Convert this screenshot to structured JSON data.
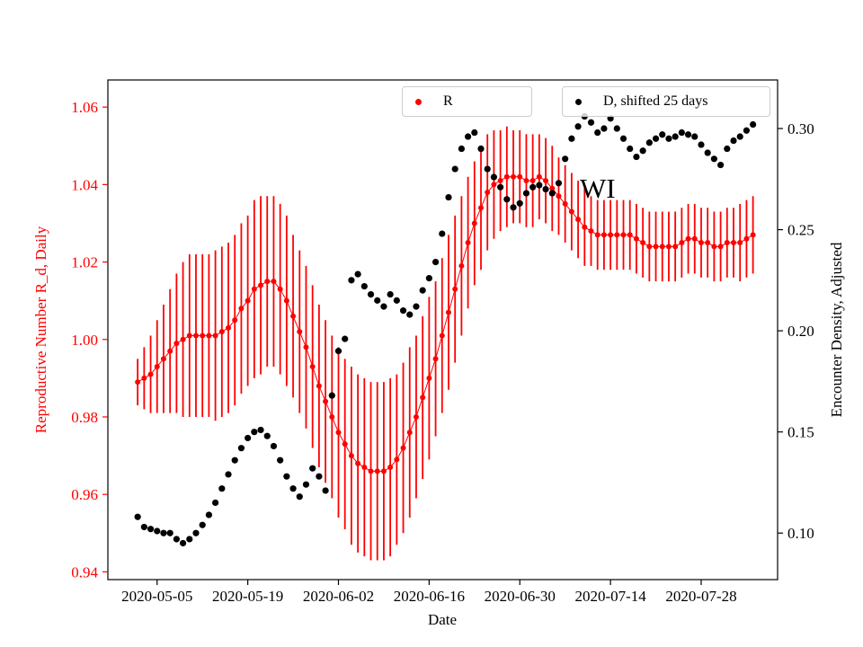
{
  "figure": {
    "background": "#ffffff",
    "annotation": "WI",
    "xlabel": "Date",
    "ylabel_left": "Reproductive Number R_d, Daily",
    "ylabel_right": "Encounter Density, Adjusted",
    "axis_color_left": "#ff0000",
    "axis_color_right": "#000000",
    "legend": [
      {
        "label": "R",
        "color": "#ff0000"
      },
      {
        "label": "D, shifted 25 days",
        "color": "#000000"
      }
    ]
  },
  "chart_data": {
    "type": "scatter",
    "title": "",
    "xlabel": "Date",
    "ylabel_left": "Reproductive Number R_d, Daily",
    "ylabel_right": "Encounter Density, Adjusted",
    "grid": false,
    "legend_position": "upper center",
    "x": [
      "2020-05-02",
      "2020-05-03",
      "2020-05-04",
      "2020-05-05",
      "2020-05-06",
      "2020-05-07",
      "2020-05-08",
      "2020-05-09",
      "2020-05-10",
      "2020-05-11",
      "2020-05-12",
      "2020-05-13",
      "2020-05-14",
      "2020-05-15",
      "2020-05-16",
      "2020-05-17",
      "2020-05-18",
      "2020-05-19",
      "2020-05-20",
      "2020-05-21",
      "2020-05-22",
      "2020-05-23",
      "2020-05-24",
      "2020-05-25",
      "2020-05-26",
      "2020-05-27",
      "2020-05-28",
      "2020-05-29",
      "2020-05-30",
      "2020-05-31",
      "2020-06-01",
      "2020-06-02",
      "2020-06-03",
      "2020-06-04",
      "2020-06-05",
      "2020-06-06",
      "2020-06-07",
      "2020-06-08",
      "2020-06-09",
      "2020-06-10",
      "2020-06-11",
      "2020-06-12",
      "2020-06-13",
      "2020-06-14",
      "2020-06-15",
      "2020-06-16",
      "2020-06-17",
      "2020-06-18",
      "2020-06-19",
      "2020-06-20",
      "2020-06-21",
      "2020-06-22",
      "2020-06-23",
      "2020-06-24",
      "2020-06-25",
      "2020-06-26",
      "2020-06-27",
      "2020-06-28",
      "2020-06-29",
      "2020-06-30",
      "2020-07-01",
      "2020-07-02",
      "2020-07-03",
      "2020-07-04",
      "2020-07-05",
      "2020-07-06",
      "2020-07-07",
      "2020-07-08",
      "2020-07-09",
      "2020-07-10",
      "2020-07-11",
      "2020-07-12",
      "2020-07-13",
      "2020-07-14",
      "2020-07-15",
      "2020-07-16",
      "2020-07-17",
      "2020-07-18",
      "2020-07-19",
      "2020-07-20",
      "2020-07-21",
      "2020-07-22",
      "2020-07-23",
      "2020-07-24",
      "2020-07-25",
      "2020-07-26",
      "2020-07-27",
      "2020-07-28",
      "2020-07-29",
      "2020-07-30",
      "2020-07-31",
      "2020-08-01",
      "2020-08-02",
      "2020-08-03",
      "2020-08-04",
      "2020-08-05"
    ],
    "series": [
      {
        "name": "R",
        "axis": "left",
        "color": "#ff0000",
        "marker": "dot",
        "errorbars": true,
        "values": [
          0.989,
          0.99,
          0.991,
          0.993,
          0.995,
          0.997,
          0.999,
          1.0,
          1.001,
          1.001,
          1.001,
          1.001,
          1.001,
          1.002,
          1.003,
          1.005,
          1.008,
          1.01,
          1.013,
          1.014,
          1.015,
          1.015,
          1.013,
          1.01,
          1.006,
          1.002,
          0.998,
          0.993,
          0.988,
          0.984,
          0.98,
          0.976,
          0.973,
          0.97,
          0.968,
          0.967,
          0.966,
          0.966,
          0.966,
          0.967,
          0.969,
          0.972,
          0.976,
          0.98,
          0.985,
          0.99,
          0.995,
          1.001,
          1.007,
          1.013,
          1.019,
          1.025,
          1.03,
          1.034,
          1.038,
          1.04,
          1.041,
          1.042,
          1.042,
          1.042,
          1.041,
          1.041,
          1.042,
          1.041,
          1.039,
          1.037,
          1.035,
          1.033,
          1.031,
          1.029,
          1.028,
          1.027,
          1.027,
          1.027,
          1.027,
          1.027,
          1.027,
          1.026,
          1.025,
          1.024,
          1.024,
          1.024,
          1.024,
          1.024,
          1.025,
          1.026,
          1.026,
          1.025,
          1.025,
          1.024,
          1.024,
          1.025,
          1.025,
          1.025,
          1.026,
          1.027
        ],
        "errors": [
          0.006,
          0.008,
          0.01,
          0.012,
          0.014,
          0.016,
          0.018,
          0.02,
          0.021,
          0.021,
          0.021,
          0.021,
          0.022,
          0.022,
          0.022,
          0.022,
          0.022,
          0.022,
          0.023,
          0.023,
          0.022,
          0.022,
          0.022,
          0.022,
          0.021,
          0.021,
          0.021,
          0.021,
          0.021,
          0.021,
          0.021,
          0.022,
          0.022,
          0.023,
          0.023,
          0.023,
          0.023,
          0.023,
          0.023,
          0.023,
          0.022,
          0.022,
          0.022,
          0.021,
          0.021,
          0.021,
          0.02,
          0.02,
          0.02,
          0.019,
          0.018,
          0.017,
          0.016,
          0.016,
          0.015,
          0.014,
          0.013,
          0.013,
          0.012,
          0.012,
          0.012,
          0.012,
          0.011,
          0.011,
          0.011,
          0.01,
          0.01,
          0.01,
          0.01,
          0.01,
          0.009,
          0.009,
          0.009,
          0.009,
          0.009,
          0.009,
          0.009,
          0.009,
          0.009,
          0.009,
          0.009,
          0.009,
          0.009,
          0.009,
          0.009,
          0.009,
          0.009,
          0.009,
          0.009,
          0.009,
          0.009,
          0.009,
          0.009,
          0.01,
          0.01,
          0.01
        ]
      },
      {
        "name": "D, shifted 25 days",
        "axis": "right",
        "color": "#000000",
        "marker": "dot",
        "errorbars": false,
        "values": [
          0.108,
          0.103,
          0.102,
          0.101,
          0.1,
          0.1,
          0.097,
          0.095,
          0.097,
          0.1,
          0.104,
          0.109,
          0.115,
          0.122,
          0.129,
          0.136,
          0.142,
          0.147,
          0.15,
          0.151,
          0.148,
          0.143,
          0.136,
          0.128,
          0.122,
          0.118,
          0.124,
          0.132,
          0.128,
          0.121,
          0.168,
          0.19,
          0.196,
          0.225,
          0.228,
          0.222,
          0.218,
          0.215,
          0.212,
          0.218,
          0.215,
          0.21,
          0.208,
          0.212,
          0.22,
          0.226,
          0.234,
          0.248,
          0.266,
          0.28,
          0.29,
          0.296,
          0.298,
          0.29,
          0.28,
          0.276,
          0.271,
          0.265,
          0.261,
          0.263,
          0.268,
          0.271,
          0.272,
          0.27,
          0.268,
          0.273,
          0.285,
          0.295,
          0.301,
          0.306,
          0.303,
          0.298,
          0.3,
          0.305,
          0.3,
          0.295,
          0.29,
          0.286,
          0.289,
          0.293,
          0.295,
          0.297,
          0.295,
          0.296,
          0.298,
          0.297,
          0.296,
          0.292,
          0.288,
          0.285,
          0.282,
          0.29,
          0.294,
          0.296,
          0.299,
          0.302
        ]
      }
    ],
    "xtick_labels": [
      "2020-05-05",
      "2020-05-19",
      "2020-06-02",
      "2020-06-16",
      "2020-06-30",
      "2020-07-14",
      "2020-07-28"
    ],
    "xtick_indices": [
      3,
      17,
      31,
      45,
      59,
      73,
      87
    ],
    "yticks_left": [
      0.94,
      0.96,
      0.98,
      1.0,
      1.02,
      1.04,
      1.06
    ],
    "yticks_right": [
      0.1,
      0.15,
      0.2,
      0.25,
      0.3
    ],
    "ylim_left": [
      0.938,
      1.067
    ],
    "ylim_right": [
      0.077,
      0.324
    ],
    "xlim_index": [
      -4.6,
      98.8
    ]
  }
}
